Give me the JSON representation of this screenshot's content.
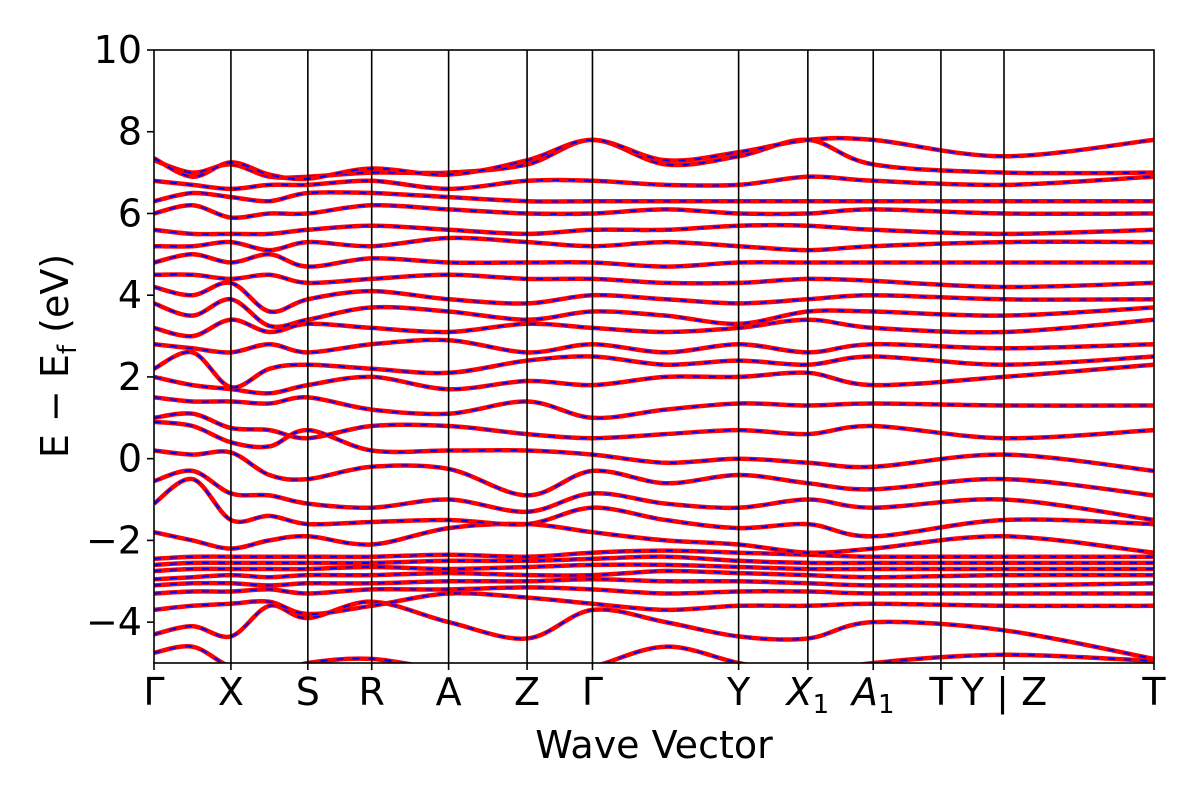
{
  "chart_data": {
    "type": "line",
    "title": "",
    "xlabel": "Wave Vector",
    "ylabel": "E − E",
    "ylabel_sub": "f",
    "ylabel_unit": "(eV)",
    "ylim": [
      -5,
      10
    ],
    "yticks": [
      {
        "value": 10,
        "label": "10"
      },
      {
        "value": 8,
        "label": "8"
      },
      {
        "value": 6,
        "label": "6"
      },
      {
        "value": 4,
        "label": "4"
      },
      {
        "value": 2,
        "label": "2"
      },
      {
        "value": 0,
        "label": "0"
      },
      {
        "value": -2,
        "label": "−2"
      },
      {
        "value": -4,
        "label": "−4"
      }
    ],
    "xlim": [
      0,
      13.0
    ],
    "kpath": [
      {
        "x": 0.0,
        "label": "Γ"
      },
      {
        "x": 1.0,
        "label": "X"
      },
      {
        "x": 2.0,
        "label": "S"
      },
      {
        "x": 2.83,
        "label": "R"
      },
      {
        "x": 3.83,
        "label": "A"
      },
      {
        "x": 4.85,
        "label": "Z"
      },
      {
        "x": 5.7,
        "label": "Γ"
      },
      {
        "x": 7.6,
        "label": "Y"
      },
      {
        "x": 8.5,
        "label": "X",
        "sub": "1"
      },
      {
        "x": 9.35,
        "label": "A",
        "sub": "1"
      },
      {
        "x": 10.23,
        "label": "T"
      },
      {
        "x": 11.05,
        "label": "Y | Z"
      },
      {
        "x": 13.0,
        "label": "T"
      }
    ],
    "grid": false,
    "legend": "none",
    "series_style": {
      "band_color": "#ff0000",
      "overlay_color": "#0000ff",
      "overlay_dash": "dashed"
    },
    "series": [
      {
        "values": [
          -4.75,
          -4.6,
          -5.1,
          -5.3,
          -5.0,
          -4.9,
          -5.2,
          -5.5,
          -5.1,
          -4.6,
          -5.0,
          -5.3,
          -5.0,
          -4.8,
          -4.95
        ]
      },
      {
        "values": [
          -4.3,
          -4.1,
          -4.35,
          -3.6,
          -3.9,
          -3.5,
          -4.0,
          -4.4,
          -3.7,
          -4.0,
          -4.35,
          -4.4,
          -4.0,
          -4.2,
          -4.9
        ]
      },
      {
        "values": [
          -3.7,
          -3.6,
          -3.55,
          -3.5,
          -3.8,
          -3.6,
          -3.3,
          -3.4,
          -3.55,
          -3.7,
          -3.6,
          -3.6,
          -3.55,
          -3.6,
          -3.6
        ]
      },
      {
        "values": [
          -3.3,
          -3.25,
          -3.25,
          -3.2,
          -3.3,
          -3.2,
          -3.2,
          -3.15,
          -3.2,
          -3.3,
          -3.25,
          -3.25,
          -3.3,
          -3.3,
          -3.3
        ]
      },
      {
        "values": [
          -3.1,
          -3.05,
          -3.05,
          -3.1,
          -3.05,
          -3.05,
          -3.0,
          -3.0,
          -2.95,
          -3.0,
          -3.0,
          -3.05,
          -3.1,
          -3.1,
          -3.05
        ]
      },
      {
        "values": [
          -2.95,
          -2.9,
          -2.85,
          -2.9,
          -2.85,
          -2.85,
          -2.8,
          -2.85,
          -2.85,
          -2.75,
          -2.8,
          -2.85,
          -2.9,
          -2.85,
          -2.85
        ]
      },
      {
        "values": [
          -2.75,
          -2.7,
          -2.7,
          -2.7,
          -2.7,
          -2.65,
          -2.7,
          -2.65,
          -2.6,
          -2.6,
          -2.65,
          -2.7,
          -2.7,
          -2.7,
          -2.7
        ]
      },
      {
        "values": [
          -2.6,
          -2.55,
          -2.55,
          -2.55,
          -2.55,
          -2.55,
          -2.5,
          -2.5,
          -2.45,
          -2.4,
          -2.5,
          -2.55,
          -2.55,
          -2.55,
          -2.55
        ]
      },
      {
        "values": [
          -2.45,
          -2.4,
          -2.4,
          -2.4,
          -2.4,
          -2.4,
          -2.35,
          -2.4,
          -2.3,
          -2.25,
          -2.3,
          -2.35,
          -2.4,
          -2.4,
          -2.4
        ]
      },
      {
        "values": [
          -1.8,
          -2.0,
          -2.2,
          -2.0,
          -1.9,
          -2.1,
          -1.7,
          -1.6,
          -1.8,
          -2.0,
          -2.1,
          -2.3,
          -2.2,
          -1.9,
          -2.3
        ]
      },
      {
        "values": [
          -1.1,
          -0.5,
          -1.5,
          -1.4,
          -1.6,
          -1.55,
          -1.5,
          -1.6,
          -1.2,
          -1.5,
          -1.7,
          -1.6,
          -1.9,
          -1.5,
          -1.6
        ]
      },
      {
        "values": [
          -0.55,
          -0.3,
          -0.85,
          -0.9,
          -1.1,
          -1.2,
          -1.0,
          -1.3,
          -0.85,
          -1.1,
          -1.2,
          -1.0,
          -1.2,
          -1.0,
          -1.5
        ]
      },
      {
        "values": [
          0.2,
          0.1,
          0.15,
          -0.4,
          -0.5,
          -0.2,
          -0.25,
          -0.9,
          -0.3,
          -0.6,
          -0.4,
          -0.6,
          -0.75,
          -0.5,
          -0.9
        ]
      },
      {
        "values": [
          0.9,
          0.8,
          0.4,
          0.3,
          0.7,
          0.2,
          0.2,
          0.2,
          0.1,
          -0.1,
          0.0,
          -0.1,
          -0.2,
          0.1,
          -0.3
        ]
      },
      {
        "values": [
          1.0,
          1.1,
          0.75,
          0.7,
          0.5,
          0.8,
          0.8,
          0.6,
          0.5,
          0.6,
          0.7,
          0.6,
          0.8,
          0.5,
          0.7
        ]
      },
      {
        "values": [
          1.5,
          1.4,
          1.4,
          1.35,
          1.5,
          1.2,
          1.1,
          1.4,
          1.0,
          1.2,
          1.35,
          1.3,
          1.35,
          1.3,
          1.3
        ]
      },
      {
        "values": [
          2.0,
          1.8,
          1.7,
          1.6,
          1.8,
          2.0,
          1.7,
          1.9,
          1.8,
          2.0,
          2.0,
          2.1,
          1.8,
          2.0,
          2.3
        ]
      },
      {
        "values": [
          2.2,
          2.6,
          1.75,
          2.2,
          2.3,
          2.2,
          2.1,
          2.4,
          2.5,
          2.3,
          2.4,
          2.3,
          2.5,
          2.3,
          2.5
        ]
      },
      {
        "values": [
          2.8,
          2.7,
          2.6,
          2.8,
          2.6,
          2.8,
          2.9,
          2.6,
          2.8,
          2.6,
          2.8,
          2.6,
          2.8,
          2.7,
          2.8
        ]
      },
      {
        "values": [
          3.2,
          3.0,
          3.4,
          3.1,
          3.3,
          3.2,
          3.1,
          3.3,
          3.2,
          3.1,
          3.2,
          3.4,
          3.2,
          3.1,
          3.4
        ]
      },
      {
        "values": [
          3.8,
          3.5,
          3.9,
          3.25,
          3.4,
          3.7,
          3.6,
          3.4,
          3.6,
          3.5,
          3.3,
          3.6,
          3.6,
          3.5,
          3.7
        ]
      },
      {
        "values": [
          4.2,
          4.0,
          4.3,
          3.6,
          3.9,
          4.1,
          3.9,
          3.8,
          4.0,
          3.9,
          3.8,
          3.9,
          4.0,
          3.9,
          3.9
        ]
      },
      {
        "values": [
          4.5,
          4.5,
          4.4,
          4.5,
          4.3,
          4.4,
          4.5,
          4.4,
          4.4,
          4.3,
          4.3,
          4.4,
          4.35,
          4.2,
          4.3
        ]
      },
      {
        "values": [
          4.8,
          5.0,
          4.8,
          5.0,
          4.7,
          4.9,
          4.8,
          4.8,
          4.8,
          4.7,
          4.8,
          4.8,
          4.8,
          4.8,
          4.8
        ]
      },
      {
        "values": [
          5.2,
          5.2,
          5.3,
          5.1,
          5.3,
          5.2,
          5.4,
          5.3,
          5.2,
          5.3,
          5.2,
          5.1,
          5.2,
          5.3,
          5.3
        ]
      },
      {
        "values": [
          5.6,
          5.5,
          5.5,
          5.5,
          5.6,
          5.7,
          5.6,
          5.5,
          5.6,
          5.6,
          5.7,
          5.7,
          5.6,
          5.5,
          5.6
        ]
      },
      {
        "values": [
          6.0,
          6.2,
          5.9,
          6.0,
          6.0,
          6.2,
          6.1,
          6.0,
          6.0,
          6.1,
          6.0,
          6.0,
          6.1,
          6.0,
          6.0
        ]
      },
      {
        "values": [
          6.3,
          6.5,
          6.4,
          6.3,
          6.5,
          6.5,
          6.4,
          6.3,
          6.3,
          6.3,
          6.3,
          6.3,
          6.3,
          6.3,
          6.3
        ]
      },
      {
        "values": [
          6.8,
          6.7,
          6.6,
          6.7,
          6.7,
          6.8,
          6.6,
          6.8,
          6.8,
          6.7,
          6.7,
          6.9,
          6.8,
          6.7,
          6.9
        ]
      },
      {
        "values": [
          7.3,
          7.0,
          7.2,
          6.9,
          6.9,
          7.0,
          7.0,
          7.2,
          7.8,
          7.2,
          7.4,
          7.8,
          7.2,
          7.0,
          7.0
        ]
      },
      {
        "values": [
          7.35,
          6.9,
          7.25,
          6.95,
          6.85,
          7.1,
          6.95,
          7.3,
          7.8,
          7.3,
          7.5,
          7.8,
          7.8,
          7.4,
          7.8
        ]
      }
    ],
    "sample_x": [
      0.0,
      0.5,
      1.0,
      1.5,
      2.0,
      2.83,
      3.83,
      4.85,
      5.7,
      6.65,
      7.6,
      8.5,
      9.35,
      11.05,
      13.0
    ]
  }
}
